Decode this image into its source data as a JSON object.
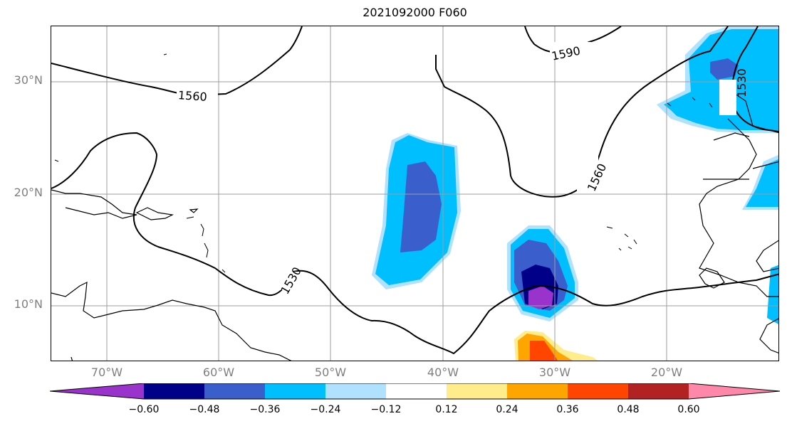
{
  "title": "2021092000 F060",
  "y_labels": [
    "30°N",
    "20°N",
    "10°N"
  ],
  "x_labels": [
    "70°W",
    "60°W",
    "50°W",
    "40°W",
    "30°W",
    "20°W"
  ],
  "contour_labels": [
    "1560",
    "1590",
    "1530",
    "1560",
    "1530"
  ],
  "colorbar": {
    "ticks": [
      "−0.60",
      "−0.48",
      "−0.36",
      "−0.24",
      "−0.12",
      "0.12",
      "0.24",
      "0.36",
      "0.48",
      "0.60"
    ],
    "colors": [
      "#9933cc",
      "#000088",
      "#3a5fcd",
      "#00bfff",
      "#b0e2ff",
      "#ffffff",
      "#ffec8b",
      "#ffa500",
      "#ff4500",
      "#b22222",
      "#ff88aa"
    ]
  }
}
